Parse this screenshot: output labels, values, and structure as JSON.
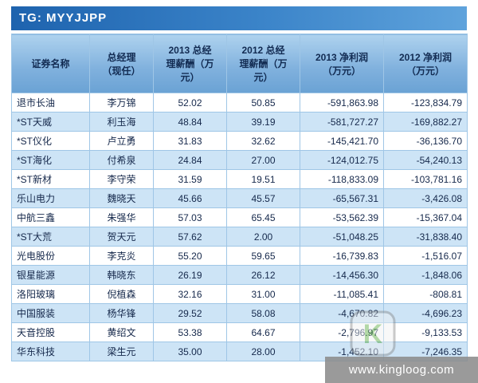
{
  "banner": {
    "label": "TG: MYYJJPP"
  },
  "table": {
    "headers": [
      "证券名称",
      "总经理\n（现任）",
      "2013 总经\n理薪酬（万\n元）",
      "2012 总经\n理薪酬（万\n元）",
      "2013 净利润\n（万元）",
      "2012 净利润\n（万元）"
    ],
    "rows": [
      [
        "退市长油",
        "李万锦",
        "52.02",
        "50.85",
        "-591,863.98",
        "-123,834.79"
      ],
      [
        "*ST天威",
        "利玉海",
        "48.84",
        "39.19",
        "-581,727.27",
        "-169,882.27"
      ],
      [
        "*ST仪化",
        "卢立勇",
        "31.83",
        "32.62",
        "-145,421.70",
        "-36,136.70"
      ],
      [
        "*ST海化",
        "付希泉",
        "24.84",
        "27.00",
        "-124,012.75",
        "-54,240.13"
      ],
      [
        "*ST新材",
        "李守荣",
        "31.59",
        "19.51",
        "-118,833.09",
        "-103,781.16"
      ],
      [
        "乐山电力",
        "魏晓天",
        "45.66",
        "45.57",
        "-65,567.31",
        "-3,426.08"
      ],
      [
        "中航三鑫",
        "朱强华",
        "57.03",
        "65.45",
        "-53,562.39",
        "-15,367.04"
      ],
      [
        "*ST大荒",
        "贺天元",
        "57.62",
        "2.00",
        "-51,048.25",
        "-31,838.40"
      ],
      [
        "光电股份",
        "李克炎",
        "55.20",
        "59.65",
        "-16,739.83",
        "-1,516.07"
      ],
      [
        "银星能源",
        "韩晓东",
        "26.19",
        "26.12",
        "-14,456.30",
        "-1,848.06"
      ],
      [
        "洛阳玻璃",
        "倪植森",
        "32.16",
        "31.00",
        "-11,085.41",
        "-808.81"
      ],
      [
        "中国服装",
        "杨华锋",
        "29.52",
        "58.08",
        "-4,670.82",
        "-4,696.23"
      ],
      [
        "天音控股",
        "黄绍文",
        "53.38",
        "64.67",
        "-2,796.97",
        "-9,133.53"
      ],
      [
        "华东科技",
        "梁生元",
        "35.00",
        "28.00",
        "-1,452.10",
        "-7,246.35"
      ]
    ]
  },
  "watermark": {
    "url": "www.kingloog.com",
    "logo_letter": "K"
  }
}
